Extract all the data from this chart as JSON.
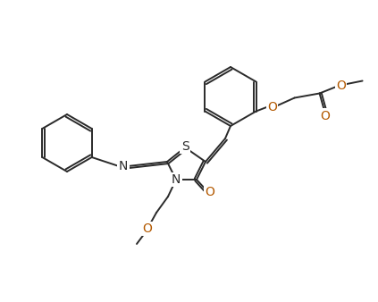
{
  "bg_color": "#ffffff",
  "line_color": "#2a2a2a",
  "atom_colors": {
    "S": "#2a2a2a",
    "N": "#2a2a2a",
    "O": "#b35900"
  },
  "figsize": [
    4.23,
    3.38
  ],
  "dpi": 100,
  "lw": 1.4
}
